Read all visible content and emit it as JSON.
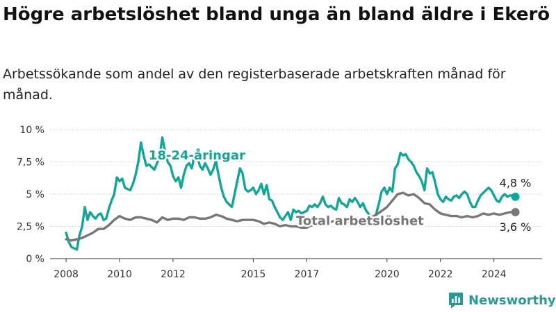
{
  "title": "Högre arbetslöshet bland unga än bland äldre i Ekerö",
  "subtitle": "Arbetssökande som andel av den registerbaserade arbetskraften månad för månad.",
  "brand": "Newsworthy",
  "colors": {
    "youth": "#13a595",
    "total": "#777777",
    "grid": "#d6d6d6",
    "brand": "#2c9a93"
  },
  "chart_data": {
    "type": "line",
    "x_unit": "year",
    "xlim": [
      2007.4,
      2025.8
    ],
    "ylim": [
      0,
      10
    ],
    "y_ticks": [
      0,
      2.5,
      5,
      7.5,
      10
    ],
    "y_tick_labels": [
      "0 %",
      "2,5 %",
      "5 %",
      "7,5 %",
      "10 %"
    ],
    "x_ticks": [
      2008,
      2010,
      2012,
      2015,
      2017,
      2020,
      2022,
      2024
    ],
    "x_tick_labels": [
      "2008",
      "2010",
      "2012",
      "2015",
      "2017",
      "2020",
      "2022",
      "2024"
    ],
    "grid": "horizontal",
    "series": [
      {
        "name": "18-24-åringar",
        "end_label": "4,8 %",
        "points": [
          [
            2008.0,
            2.0
          ],
          [
            2008.1,
            1.3
          ],
          [
            2008.2,
            0.9
          ],
          [
            2008.3,
            0.8
          ],
          [
            2008.4,
            0.7
          ],
          [
            2008.5,
            1.8
          ],
          [
            2008.6,
            2.5
          ],
          [
            2008.7,
            4.0
          ],
          [
            2008.8,
            3.0
          ],
          [
            2008.9,
            3.6
          ],
          [
            2009.0,
            3.3
          ],
          [
            2009.1,
            3.1
          ],
          [
            2009.2,
            3.4
          ],
          [
            2009.3,
            3.5
          ],
          [
            2009.4,
            3.0
          ],
          [
            2009.5,
            3.1
          ],
          [
            2009.6,
            3.9
          ],
          [
            2009.7,
            4.5
          ],
          [
            2009.8,
            5.0
          ],
          [
            2009.9,
            6.3
          ],
          [
            2010.0,
            6.0
          ],
          [
            2010.1,
            6.2
          ],
          [
            2010.2,
            5.5
          ],
          [
            2010.3,
            5.4
          ],
          [
            2010.4,
            5.3
          ],
          [
            2010.5,
            5.8
          ],
          [
            2010.6,
            6.5
          ],
          [
            2010.7,
            7.5
          ],
          [
            2010.8,
            9.0
          ],
          [
            2010.9,
            8.0
          ],
          [
            2011.0,
            7.2
          ],
          [
            2011.1,
            7.3
          ],
          [
            2011.2,
            7.1
          ],
          [
            2011.3,
            6.9
          ],
          [
            2011.4,
            7.4
          ],
          [
            2011.5,
            8.0
          ],
          [
            2011.6,
            9.4
          ],
          [
            2011.7,
            8.3
          ],
          [
            2011.8,
            7.5
          ],
          [
            2011.9,
            7.2
          ],
          [
            2012.0,
            6.4
          ],
          [
            2012.1,
            6.0
          ],
          [
            2012.2,
            6.3
          ],
          [
            2012.3,
            5.5
          ],
          [
            2012.4,
            6.5
          ],
          [
            2012.5,
            7.2
          ],
          [
            2012.6,
            7.4
          ],
          [
            2012.7,
            7.0
          ],
          [
            2012.8,
            8.0
          ],
          [
            2012.9,
            8.0
          ],
          [
            2013.0,
            7.2
          ],
          [
            2013.1,
            6.9
          ],
          [
            2013.2,
            7.4
          ],
          [
            2013.3,
            7.0
          ],
          [
            2013.4,
            6.5
          ],
          [
            2013.5,
            6.9
          ],
          [
            2013.6,
            7.6
          ],
          [
            2013.7,
            6.5
          ],
          [
            2013.8,
            5.5
          ],
          [
            2013.9,
            4.8
          ],
          [
            2014.0,
            4.4
          ],
          [
            2014.1,
            4.2
          ],
          [
            2014.2,
            4.0
          ],
          [
            2014.3,
            5.0
          ],
          [
            2014.4,
            6.0
          ],
          [
            2014.5,
            7.0
          ],
          [
            2014.6,
            6.6
          ],
          [
            2014.7,
            5.4
          ],
          [
            2014.8,
            5.2
          ],
          [
            2014.9,
            5.3
          ],
          [
            2015.0,
            5.5
          ],
          [
            2015.1,
            5.0
          ],
          [
            2015.2,
            5.3
          ],
          [
            2015.3,
            5.8
          ],
          [
            2015.4,
            5.0
          ],
          [
            2015.5,
            5.7
          ],
          [
            2015.6,
            4.6
          ],
          [
            2015.7,
            4.5
          ],
          [
            2015.8,
            4.0
          ],
          [
            2015.9,
            3.6
          ],
          [
            2016.0,
            3.2
          ],
          [
            2016.1,
            3.0
          ],
          [
            2016.2,
            3.3
          ],
          [
            2016.3,
            3.6
          ],
          [
            2016.4,
            3.0
          ],
          [
            2016.5,
            3.8
          ],
          [
            2016.6,
            3.6
          ],
          [
            2016.7,
            3.7
          ],
          [
            2016.8,
            3.5
          ],
          [
            2016.9,
            3.6
          ],
          [
            2017.0,
            3.7
          ],
          [
            2017.1,
            4.1
          ],
          [
            2017.2,
            4.0
          ],
          [
            2017.3,
            4.2
          ],
          [
            2017.4,
            4.0
          ],
          [
            2017.5,
            4.3
          ],
          [
            2017.6,
            4.8
          ],
          [
            2017.7,
            4.2
          ],
          [
            2017.8,
            4.0
          ],
          [
            2017.9,
            4.1
          ],
          [
            2018.0,
            3.9
          ],
          [
            2018.1,
            3.8
          ],
          [
            2018.2,
            4.7
          ],
          [
            2018.3,
            4.3
          ],
          [
            2018.4,
            4.2
          ],
          [
            2018.5,
            4.0
          ],
          [
            2018.6,
            4.6
          ],
          [
            2018.7,
            4.4
          ],
          [
            2018.8,
            4.7
          ],
          [
            2018.9,
            4.4
          ],
          [
            2019.0,
            4.0
          ],
          [
            2019.1,
            4.3
          ],
          [
            2019.2,
            3.8
          ],
          [
            2019.3,
            3.5
          ],
          [
            2019.4,
            3.2
          ],
          [
            2019.5,
            3.0
          ],
          [
            2019.6,
            3.5
          ],
          [
            2019.7,
            4.3
          ],
          [
            2019.8,
            5.2
          ],
          [
            2019.9,
            5.5
          ],
          [
            2020.0,
            5.0
          ],
          [
            2020.1,
            5.5
          ],
          [
            2020.2,
            5.2
          ],
          [
            2020.3,
            7.0
          ],
          [
            2020.4,
            7.3
          ],
          [
            2020.5,
            8.2
          ],
          [
            2020.6,
            8.0
          ],
          [
            2020.7,
            8.1
          ],
          [
            2020.8,
            7.7
          ],
          [
            2020.9,
            7.5
          ],
          [
            2021.0,
            7.2
          ],
          [
            2021.1,
            6.7
          ],
          [
            2021.2,
            6.4
          ],
          [
            2021.3,
            6.0
          ],
          [
            2021.4,
            5.3
          ],
          [
            2021.5,
            7.0
          ],
          [
            2021.6,
            6.6
          ],
          [
            2021.7,
            6.7
          ],
          [
            2021.8,
            5.9
          ],
          [
            2021.9,
            5.0
          ],
          [
            2022.0,
            4.6
          ],
          [
            2022.1,
            4.4
          ],
          [
            2022.2,
            4.8
          ],
          [
            2022.3,
            4.6
          ],
          [
            2022.4,
            4.5
          ],
          [
            2022.5,
            4.8
          ],
          [
            2022.6,
            4.9
          ],
          [
            2022.7,
            4.7
          ],
          [
            2022.8,
            5.0
          ],
          [
            2022.9,
            5.2
          ],
          [
            2023.0,
            5.0
          ],
          [
            2023.1,
            4.4
          ],
          [
            2023.2,
            4.0
          ],
          [
            2023.3,
            4.0
          ],
          [
            2023.4,
            4.5
          ],
          [
            2023.5,
            4.9
          ],
          [
            2023.6,
            5.1
          ],
          [
            2023.7,
            5.3
          ],
          [
            2023.8,
            5.5
          ],
          [
            2023.9,
            5.3
          ],
          [
            2024.0,
            4.9
          ],
          [
            2024.1,
            4.5
          ],
          [
            2024.2,
            4.4
          ],
          [
            2024.3,
            4.8
          ],
          [
            2024.4,
            5.0
          ],
          [
            2024.5,
            4.8
          ],
          [
            2024.6,
            4.9
          ],
          [
            2024.7,
            4.9
          ],
          [
            2024.8,
            4.8
          ]
        ]
      },
      {
        "name": "Total arbetslöshet",
        "end_label": "3,6 %",
        "points": [
          [
            2008.0,
            1.5
          ],
          [
            2008.2,
            1.4
          ],
          [
            2008.4,
            1.5
          ],
          [
            2008.6,
            1.6
          ],
          [
            2008.8,
            1.8
          ],
          [
            2009.0,
            2.0
          ],
          [
            2009.2,
            2.3
          ],
          [
            2009.4,
            2.3
          ],
          [
            2009.6,
            2.6
          ],
          [
            2009.8,
            3.0
          ],
          [
            2010.0,
            3.3
          ],
          [
            2010.2,
            3.1
          ],
          [
            2010.4,
            3.0
          ],
          [
            2010.6,
            3.2
          ],
          [
            2010.8,
            3.2
          ],
          [
            2011.0,
            3.1
          ],
          [
            2011.2,
            3.0
          ],
          [
            2011.4,
            2.8
          ],
          [
            2011.6,
            3.2
          ],
          [
            2011.8,
            3.0
          ],
          [
            2012.0,
            3.1
          ],
          [
            2012.2,
            3.1
          ],
          [
            2012.4,
            3.0
          ],
          [
            2012.6,
            3.2
          ],
          [
            2012.8,
            3.2
          ],
          [
            2013.0,
            3.1
          ],
          [
            2013.2,
            3.1
          ],
          [
            2013.4,
            3.2
          ],
          [
            2013.6,
            3.4
          ],
          [
            2013.8,
            3.3
          ],
          [
            2014.0,
            3.1
          ],
          [
            2014.2,
            3.0
          ],
          [
            2014.4,
            2.9
          ],
          [
            2014.6,
            3.0
          ],
          [
            2014.8,
            3.0
          ],
          [
            2015.0,
            3.0
          ],
          [
            2015.2,
            2.9
          ],
          [
            2015.4,
            2.7
          ],
          [
            2015.6,
            2.8
          ],
          [
            2015.8,
            2.7
          ],
          [
            2016.0,
            2.5
          ],
          [
            2016.2,
            2.6
          ],
          [
            2016.4,
            2.5
          ],
          [
            2016.6,
            2.5
          ],
          [
            2016.8,
            2.4
          ],
          [
            2017.0,
            2.4
          ],
          [
            2017.2,
            2.6
          ],
          [
            2017.4,
            2.8
          ],
          [
            2017.6,
            2.9
          ],
          [
            2017.8,
            2.8
          ],
          [
            2018.0,
            2.9
          ],
          [
            2018.2,
            2.9
          ],
          [
            2018.4,
            2.8
          ],
          [
            2018.6,
            2.9
          ],
          [
            2018.8,
            3.0
          ],
          [
            2019.0,
            3.0
          ],
          [
            2019.2,
            3.0
          ],
          [
            2019.4,
            3.2
          ],
          [
            2019.6,
            3.4
          ],
          [
            2019.8,
            3.7
          ],
          [
            2020.0,
            4.0
          ],
          [
            2020.2,
            4.5
          ],
          [
            2020.4,
            5.0
          ],
          [
            2020.6,
            5.1
          ],
          [
            2020.8,
            4.9
          ],
          [
            2021.0,
            5.0
          ],
          [
            2021.2,
            4.7
          ],
          [
            2021.4,
            4.3
          ],
          [
            2021.6,
            4.2
          ],
          [
            2021.8,
            3.8
          ],
          [
            2022.0,
            3.5
          ],
          [
            2022.2,
            3.4
          ],
          [
            2022.4,
            3.3
          ],
          [
            2022.6,
            3.3
          ],
          [
            2022.8,
            3.2
          ],
          [
            2023.0,
            3.3
          ],
          [
            2023.2,
            3.2
          ],
          [
            2023.4,
            3.3
          ],
          [
            2023.6,
            3.5
          ],
          [
            2023.8,
            3.4
          ],
          [
            2024.0,
            3.5
          ],
          [
            2024.2,
            3.4
          ],
          [
            2024.4,
            3.5
          ],
          [
            2024.6,
            3.6
          ],
          [
            2024.8,
            3.6
          ]
        ]
      }
    ]
  }
}
